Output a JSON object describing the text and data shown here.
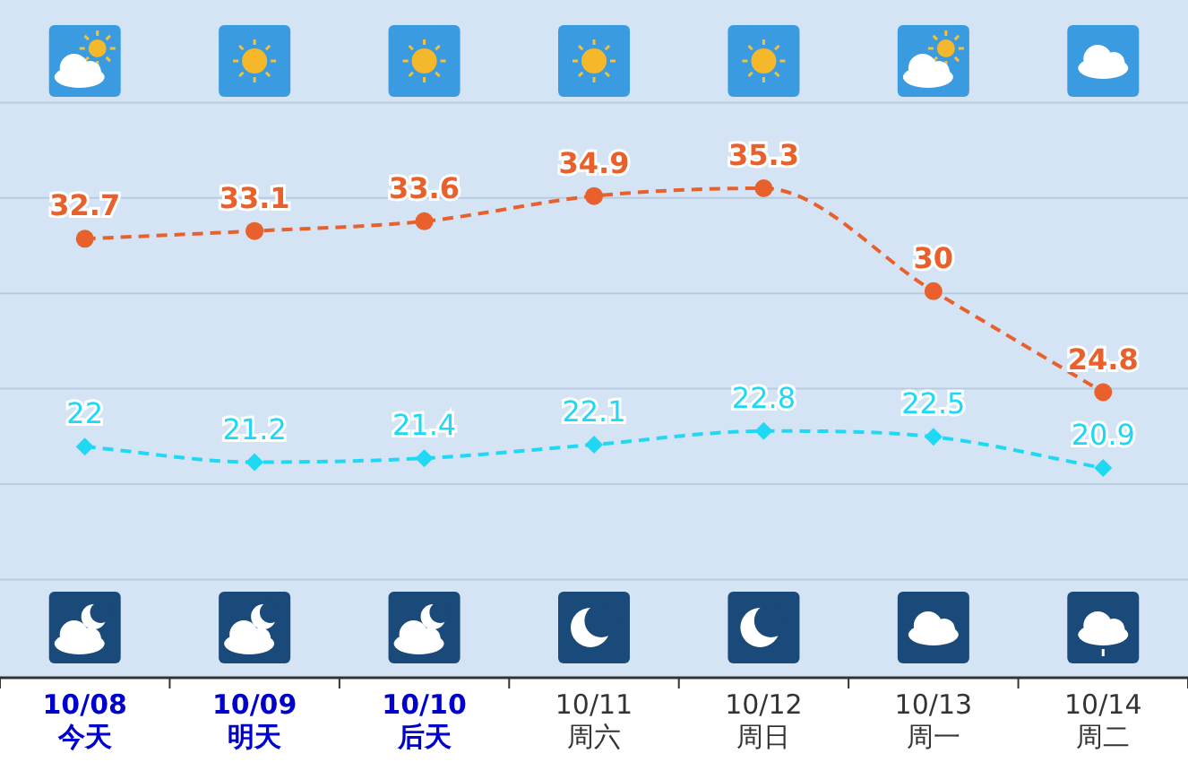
{
  "chart_data": {
    "type": "line",
    "categories": [
      "10/08 今天",
      "10/09 明天",
      "10/10 后天",
      "10/11 周六",
      "10/12 周日",
      "10/13 周一",
      "10/14 周二"
    ],
    "series": [
      {
        "color": "#e8612c",
        "marker": "circle",
        "values": [
          32.7,
          33.1,
          33.6,
          34.9,
          35.3,
          30,
          24.8
        ]
      },
      {
        "color": "#1ed8f4",
        "marker": "diamond",
        "values": [
          22,
          21.2,
          21.4,
          22.1,
          22.8,
          22.5,
          20.9
        ]
      }
    ],
    "relative": false,
    "data_labels": true,
    "line_style": "dashed",
    "grid": true
  }
}
